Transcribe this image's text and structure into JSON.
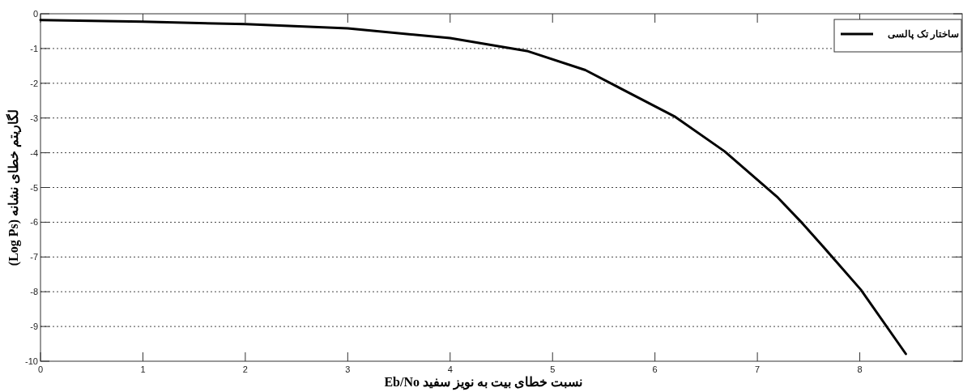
{
  "chart_data": {
    "type": "line",
    "xlabel": "نسبت خطای بیت به نویز سفید Eb/No",
    "ylabel": "لگاریتم خطای نشانه (Log Ps)",
    "x": [
      0,
      1,
      2,
      3,
      4,
      4.75,
      5.32,
      6.2,
      6.68,
      7.2,
      7.42,
      7.63,
      8.01,
      8.45
    ],
    "series": [
      {
        "name": "ساختار تک پالسی",
        "color": "#000000",
        "values": [
          -0.18,
          -0.23,
          -0.3,
          -0.42,
          -0.7,
          -1.07,
          -1.62,
          -2.97,
          -3.96,
          -5.29,
          -5.97,
          -6.66,
          -7.94,
          -9.79
        ]
      }
    ],
    "xlim": [
      0,
      9
    ],
    "xticks": [
      0,
      1,
      2,
      3,
      4,
      5,
      6,
      7,
      8
    ],
    "ylim": [
      -10,
      0
    ],
    "yticks": [
      -10,
      -9,
      -8,
      -7,
      -6,
      -5,
      -4,
      -3,
      -2,
      -1,
      0
    ],
    "grid": "y",
    "legend": "top right",
    "marker": "none",
    "line_style": "solid"
  }
}
